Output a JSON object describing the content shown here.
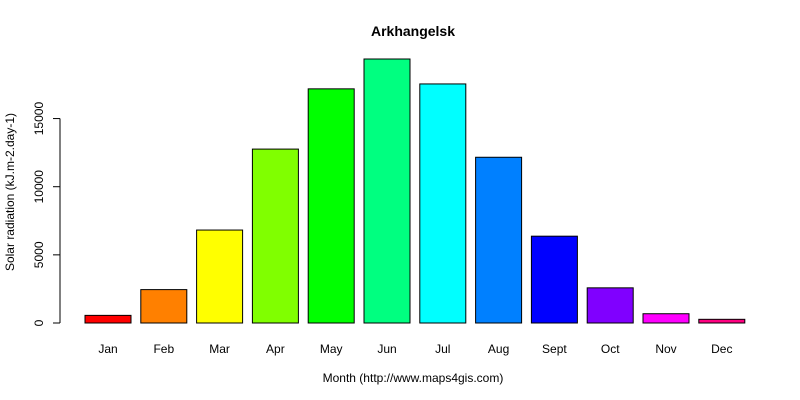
{
  "chart_data": {
    "type": "bar",
    "title": "Arkhangelsk",
    "xlabel": "Month (http://www.maps4gis.com)",
    "ylabel": "Solar radiation (kJ.m-2.day-1)",
    "categories": [
      "Jan",
      "Feb",
      "Mar",
      "Apr",
      "May",
      "Jun",
      "Jul",
      "Aug",
      "Sept",
      "Oct",
      "Nov",
      "Dec"
    ],
    "values": [
      560,
      2450,
      6820,
      12760,
      17180,
      19370,
      17540,
      12160,
      6370,
      2580,
      680,
      270
    ],
    "colors": [
      "#FF0000",
      "#FF8000",
      "#FFFF00",
      "#80FF00",
      "#00FF00",
      "#00FF80",
      "#00FFFF",
      "#0080FF",
      "#0000FF",
      "#8000FF",
      "#FF00FF",
      "#FF0080"
    ],
    "ylim": [
      0,
      19370
    ],
    "yticks": [
      0,
      5000,
      10000,
      15000
    ],
    "grid": false,
    "legend": "none"
  }
}
